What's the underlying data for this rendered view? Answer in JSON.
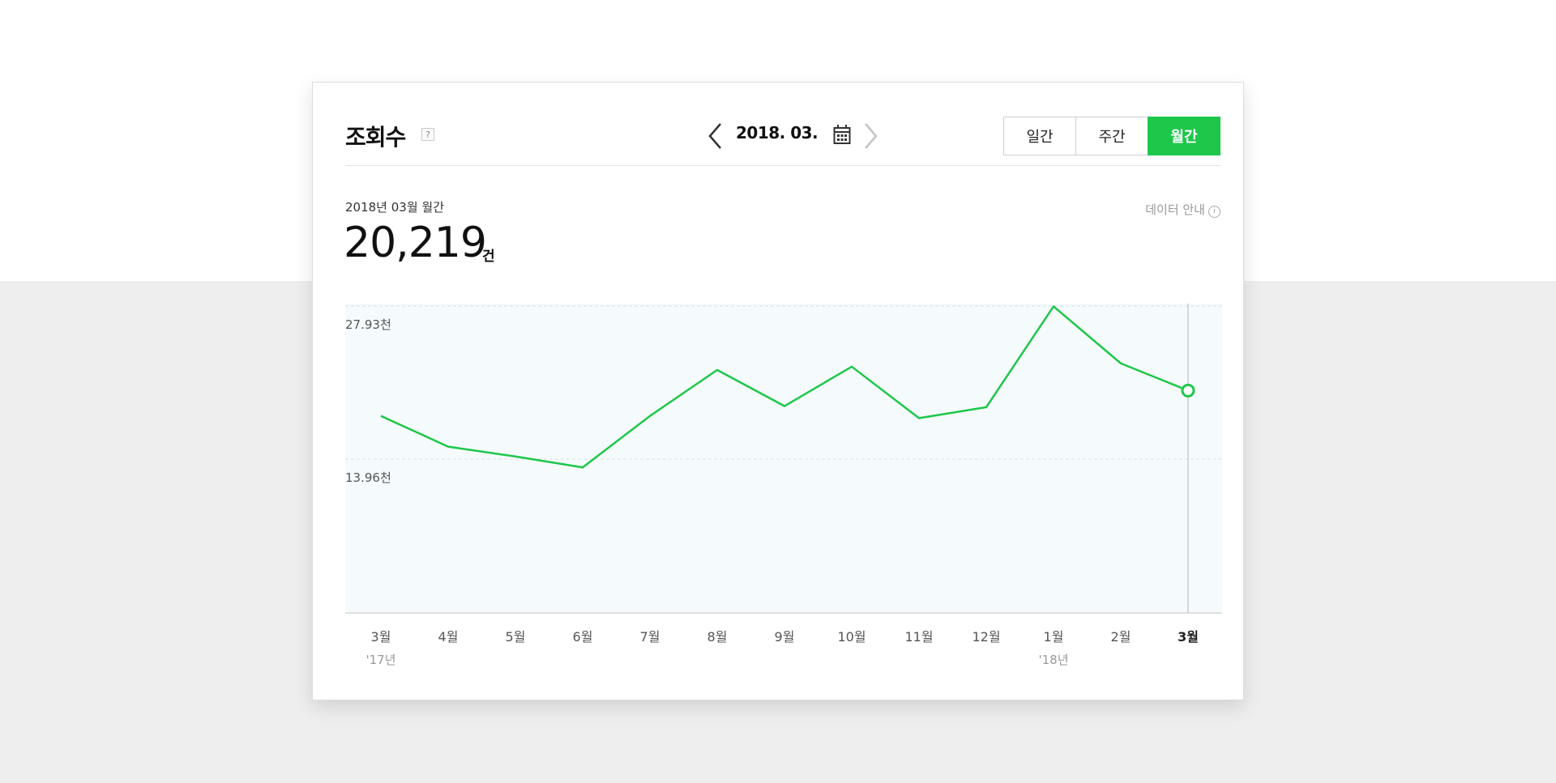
{
  "header": {
    "title": "조회수",
    "help": "?",
    "date": "2018. 03.",
    "tabs": [
      {
        "label": "일간",
        "active": false
      },
      {
        "label": "주간",
        "active": false
      },
      {
        "label": "월간",
        "active": true
      }
    ]
  },
  "summary": {
    "period": "2018년 03월 월간",
    "value": "20,219",
    "unit": "건",
    "info": "데이터 안내",
    "info_icon": "i"
  },
  "colors": {
    "accent": "#1ec74a",
    "plot_bg": "#f5fafd"
  },
  "chart_data": {
    "type": "line",
    "categories": [
      "3월",
      "4월",
      "5월",
      "6월",
      "7월",
      "8월",
      "9월",
      "10월",
      "11월",
      "12월",
      "1월",
      "2월",
      "3월"
    ],
    "year_labels": [
      "'17년",
      "",
      "",
      "",
      "",
      "",
      "",
      "",
      "",
      "",
      "'18년",
      "",
      ""
    ],
    "series": [
      {
        "values": [
          17900,
          15100,
          14200,
          13200,
          17900,
          22100,
          18800,
          22400,
          17700,
          18700,
          27900,
          22700,
          20219
        ]
      }
    ],
    "ytick_labels": [
      "27.93천",
      "13.96천"
    ],
    "yticks": [
      27930,
      13960
    ],
    "ylim": [
      0,
      27930
    ],
    "highlight_index": 12,
    "grid": true
  }
}
